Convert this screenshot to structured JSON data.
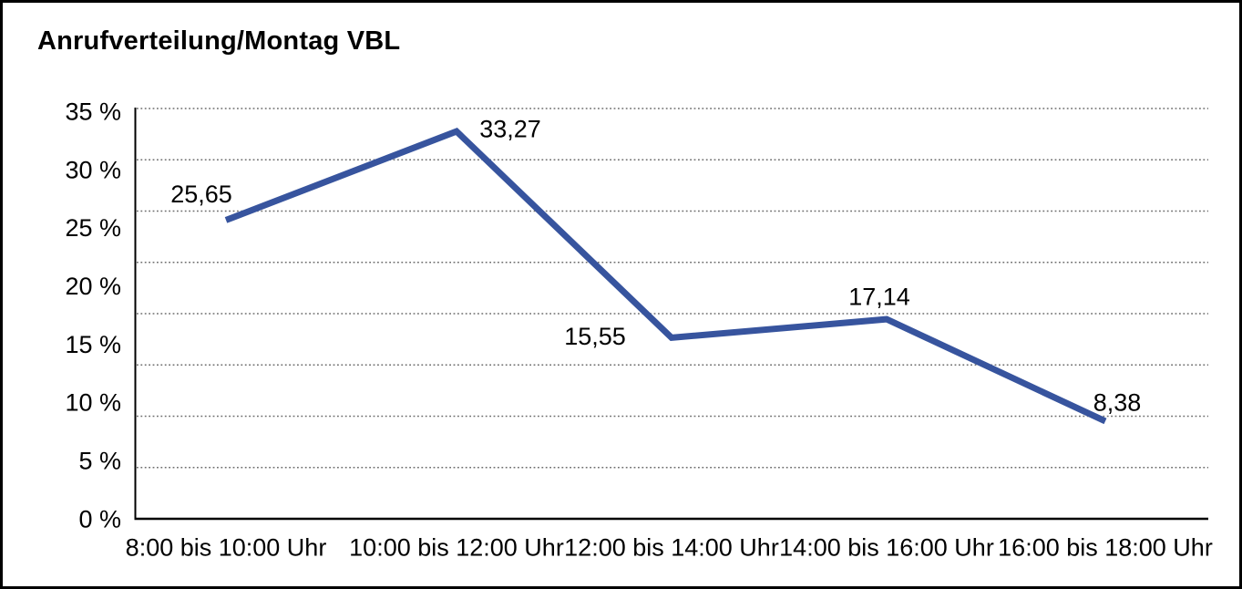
{
  "chart_data": {
    "type": "line",
    "title": "Anrufverteilung/Montag VBL",
    "categories": [
      "8:00 bis 10:00 Uhr",
      "10:00 bis 12:00 Uhr",
      "12:00 bis 14:00 Uhr",
      "14:00 bis 16:00 Uhr",
      "16:00 bis 18:00 Uhr"
    ],
    "values": [
      25.65,
      33.27,
      15.55,
      17.14,
      8.38
    ],
    "value_labels": [
      "25,65",
      "33,27",
      "15,55",
      "17,14",
      "8,38"
    ],
    "y_ticks": [
      "35 %",
      "30 %",
      "25 %",
      "20 %",
      "15 %",
      "10 %",
      "5 %",
      "0 %"
    ],
    "y_tick_values": [
      35,
      30,
      25,
      20,
      15,
      10,
      5,
      0
    ],
    "ylim": [
      0,
      35
    ],
    "grid": "horizontal-dotted",
    "legend": "none",
    "line_color": "#37549E",
    "axis_color": "#000000",
    "gridline_color": "#6E6E6E",
    "text_color": "#000000",
    "background": "#FFFFFF",
    "border_color": "#000000"
  }
}
